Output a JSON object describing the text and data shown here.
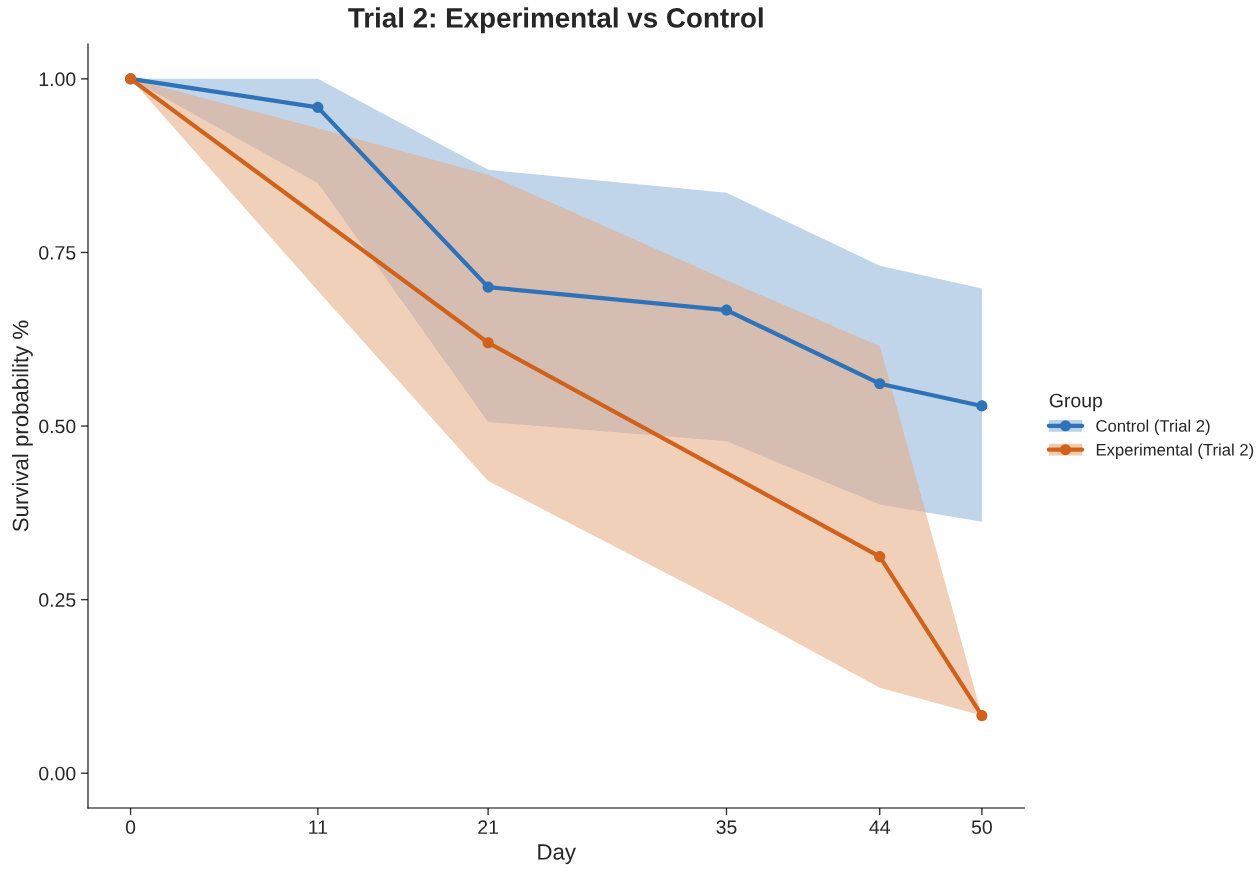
{
  "chart_data": {
    "type": "line",
    "title": "Trial 2: Experimental vs Control",
    "xlabel": "Day",
    "ylabel": "Survival probability %",
    "legend_title": "Group",
    "legend": "right",
    "grid": false,
    "marker": "circle",
    "line_style": "solid",
    "x": [
      0,
      11,
      21,
      35,
      44,
      50
    ],
    "series": [
      {
        "name": "Control (Trial 2)",
        "color": "#2e72b8",
        "values": [
          1.0,
          0.959,
          0.7,
          0.667,
          0.561,
          0.529
        ],
        "lower": [
          1.0,
          0.85,
          0.506,
          0.478,
          0.387,
          0.362
        ],
        "upper": [
          1.0,
          1.0,
          0.869,
          0.836,
          0.731,
          0.698
        ]
      },
      {
        "name": "Experimental (Trial 2)",
        "color": "#d0621c",
        "values": [
          1.0,
          null,
          0.62,
          null,
          0.312,
          0.083
        ],
        "lower": [
          1.0,
          0.695,
          0.421,
          0.243,
          0.123,
          0.083
        ],
        "upper": [
          1.0,
          0.929,
          0.862,
          0.71,
          0.615,
          0.083
        ]
      }
    ],
    "xlim": [
      -2.5,
      52.5
    ],
    "xticks": [
      0,
      11,
      21,
      35,
      44,
      50
    ],
    "ylim": [
      -0.05,
      1.05
    ],
    "yticks": [
      {
        "value": 0,
        "label": "0.00"
      },
      {
        "value": 0.25,
        "label": "0.25"
      },
      {
        "value": 0.5,
        "label": "0.50"
      },
      {
        "value": 0.75,
        "label": "0.75"
      },
      {
        "value": 1,
        "label": "1.00"
      }
    ]
  }
}
